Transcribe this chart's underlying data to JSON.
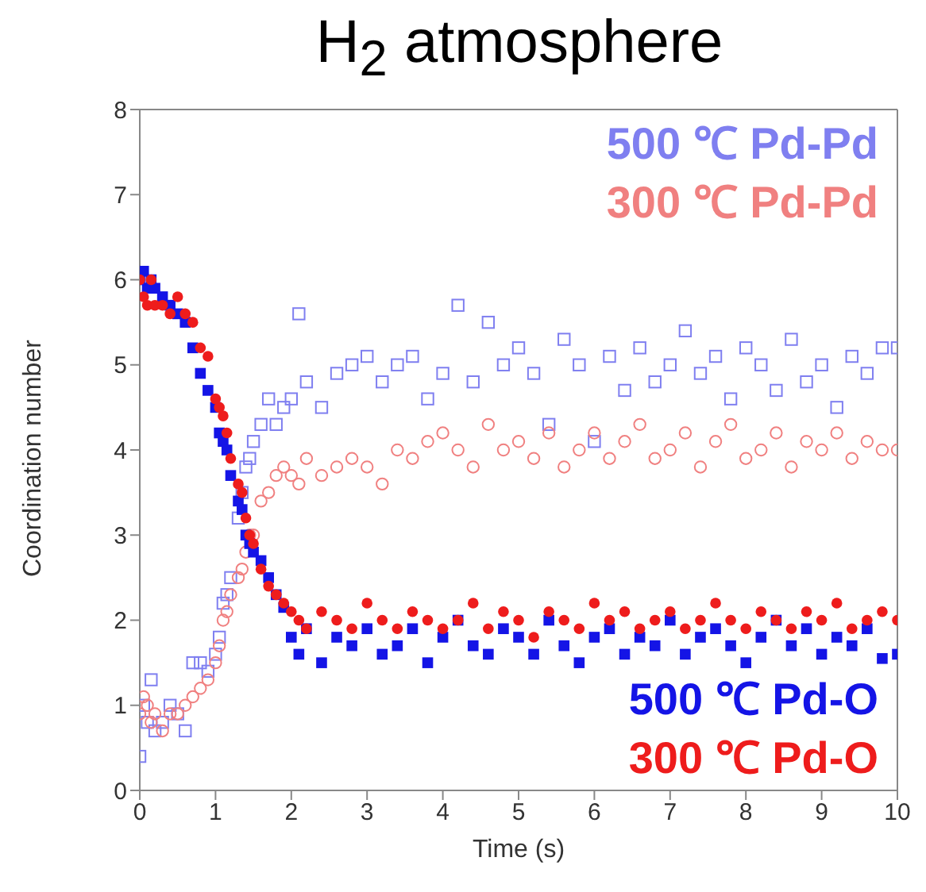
{
  "chart_data": {
    "type": "scatter",
    "title": "H$_{2}$ atmosphere",
    "xlabel": "Time (s)",
    "ylabel": "Coordination number",
    "xlim": [
      0,
      10
    ],
    "xticks": [
      0,
      1,
      2,
      3,
      4,
      5,
      6,
      7,
      8,
      9,
      10
    ],
    "ylim": [
      0,
      8
    ],
    "yticks": [
      0,
      1,
      2,
      3,
      4,
      5,
      6,
      7,
      8
    ],
    "legend": "right",
    "x": [
      0,
      0.05,
      0.1,
      0.15,
      0.2,
      0.3,
      0.4,
      0.5,
      0.6,
      0.7,
      0.8,
      0.9,
      1.0,
      1.05,
      1.1,
      1.15,
      1.2,
      1.3,
      1.35,
      1.4,
      1.45,
      1.5,
      1.6,
      1.7,
      1.8,
      1.9,
      2.0,
      2.1,
      2.2,
      2.4,
      2.6,
      2.8,
      3.0,
      3.2,
      3.4,
      3.6,
      3.8,
      4.0,
      4.2,
      4.4,
      4.6,
      4.8,
      5.0,
      5.2,
      5.4,
      5.6,
      5.8,
      6.0,
      6.2,
      6.4,
      6.6,
      6.8,
      7.0,
      7.2,
      7.4,
      7.6,
      7.8,
      8.0,
      8.2,
      8.4,
      8.6,
      8.8,
      9.0,
      9.2,
      9.4,
      9.6,
      9.8,
      10
    ],
    "series": [
      {
        "name": "500 ℃ Pd-Pd",
        "color": "#7f7ff0",
        "marker": "square",
        "values": [
          0.4,
          1.0,
          0.8,
          1.3,
          0.7,
          0.8,
          1.0,
          0.9,
          0.7,
          1.5,
          1.5,
          1.4,
          1.6,
          1.8,
          2.2,
          2.3,
          2.5,
          3.2,
          3.5,
          3.8,
          3.9,
          4.1,
          4.3,
          4.6,
          4.3,
          4.5,
          4.6,
          5.6,
          4.8,
          4.5,
          4.9,
          5.0,
          5.1,
          4.8,
          5.0,
          5.1,
          4.6,
          4.9,
          5.7,
          4.8,
          5.5,
          5.0,
          5.2,
          4.9,
          4.3,
          5.3,
          5.0,
          4.1,
          5.1,
          4.7,
          5.2,
          4.8,
          5.0,
          5.4,
          4.9,
          5.1,
          4.6,
          5.2,
          5.0,
          4.7,
          5.3,
          4.8,
          5.0,
          4.5,
          5.1,
          4.9,
          5.2,
          5.2
        ]
      },
      {
        "name": "300 ℃ Pd-Pd",
        "color": "#f08080",
        "marker": "circle",
        "values": [
          0.9,
          1.1,
          1.0,
          0.8,
          0.9,
          0.7,
          0.9,
          0.9,
          1.0,
          1.1,
          1.2,
          1.3,
          1.5,
          1.7,
          2.0,
          2.1,
          2.3,
          2.5,
          2.6,
          2.8,
          3.0,
          3.0,
          3.4,
          3.5,
          3.7,
          3.8,
          3.7,
          3.6,
          3.9,
          3.7,
          3.8,
          3.9,
          3.8,
          3.6,
          4.0,
          3.9,
          4.1,
          4.2,
          4.0,
          3.8,
          4.3,
          4.0,
          4.1,
          3.9,
          4.2,
          3.8,
          4.0,
          4.2,
          3.9,
          4.1,
          4.3,
          3.9,
          4.0,
          4.2,
          3.8,
          4.1,
          4.3,
          3.9,
          4.0,
          4.2,
          3.8,
          4.1,
          4.0,
          4.2,
          3.9,
          4.1,
          4.0,
          4.0
        ]
      },
      {
        "name": "500 ℃ Pd-O",
        "color": "#1414e6",
        "marker": "square",
        "values": [
          6.0,
          6.1,
          5.9,
          6.0,
          5.9,
          5.8,
          5.7,
          5.6,
          5.5,
          5.2,
          4.9,
          4.7,
          4.5,
          4.2,
          4.1,
          4.0,
          3.7,
          3.4,
          3.3,
          3.0,
          2.9,
          2.8,
          2.7,
          2.5,
          2.3,
          2.15,
          1.8,
          1.6,
          1.9,
          1.5,
          1.8,
          1.7,
          1.9,
          1.6,
          1.7,
          1.9,
          1.5,
          1.8,
          2.0,
          1.7,
          1.6,
          1.9,
          1.8,
          1.6,
          2.0,
          1.7,
          1.5,
          1.8,
          1.9,
          1.6,
          1.8,
          1.7,
          2.0,
          1.6,
          1.8,
          1.9,
          1.7,
          1.5,
          1.8,
          2.0,
          1.7,
          1.9,
          1.6,
          1.8,
          1.7,
          1.9,
          1.55,
          1.6
        ]
      },
      {
        "name": "300 ℃ Pd-O",
        "color": "#ee1c1c",
        "marker": "circle",
        "values": [
          6.0,
          5.8,
          5.7,
          6.0,
          5.7,
          5.7,
          5.6,
          5.8,
          5.6,
          5.5,
          5.2,
          5.1,
          4.6,
          4.5,
          4.4,
          4.2,
          3.9,
          3.6,
          3.5,
          3.2,
          3.0,
          2.9,
          2.6,
          2.4,
          2.3,
          2.2,
          2.1,
          2.0,
          1.9,
          2.1,
          2.0,
          1.9,
          2.2,
          2.0,
          1.9,
          2.1,
          2.0,
          1.9,
          2.0,
          2.2,
          1.9,
          2.1,
          2.0,
          1.8,
          2.1,
          2.0,
          1.9,
          2.2,
          2.0,
          2.1,
          1.9,
          2.0,
          2.1,
          1.9,
          2.0,
          2.2,
          2.0,
          1.9,
          2.1,
          2.0,
          1.9,
          2.1,
          2.0,
          2.2,
          1.9,
          2.0,
          2.1,
          2.0
        ]
      }
    ]
  }
}
